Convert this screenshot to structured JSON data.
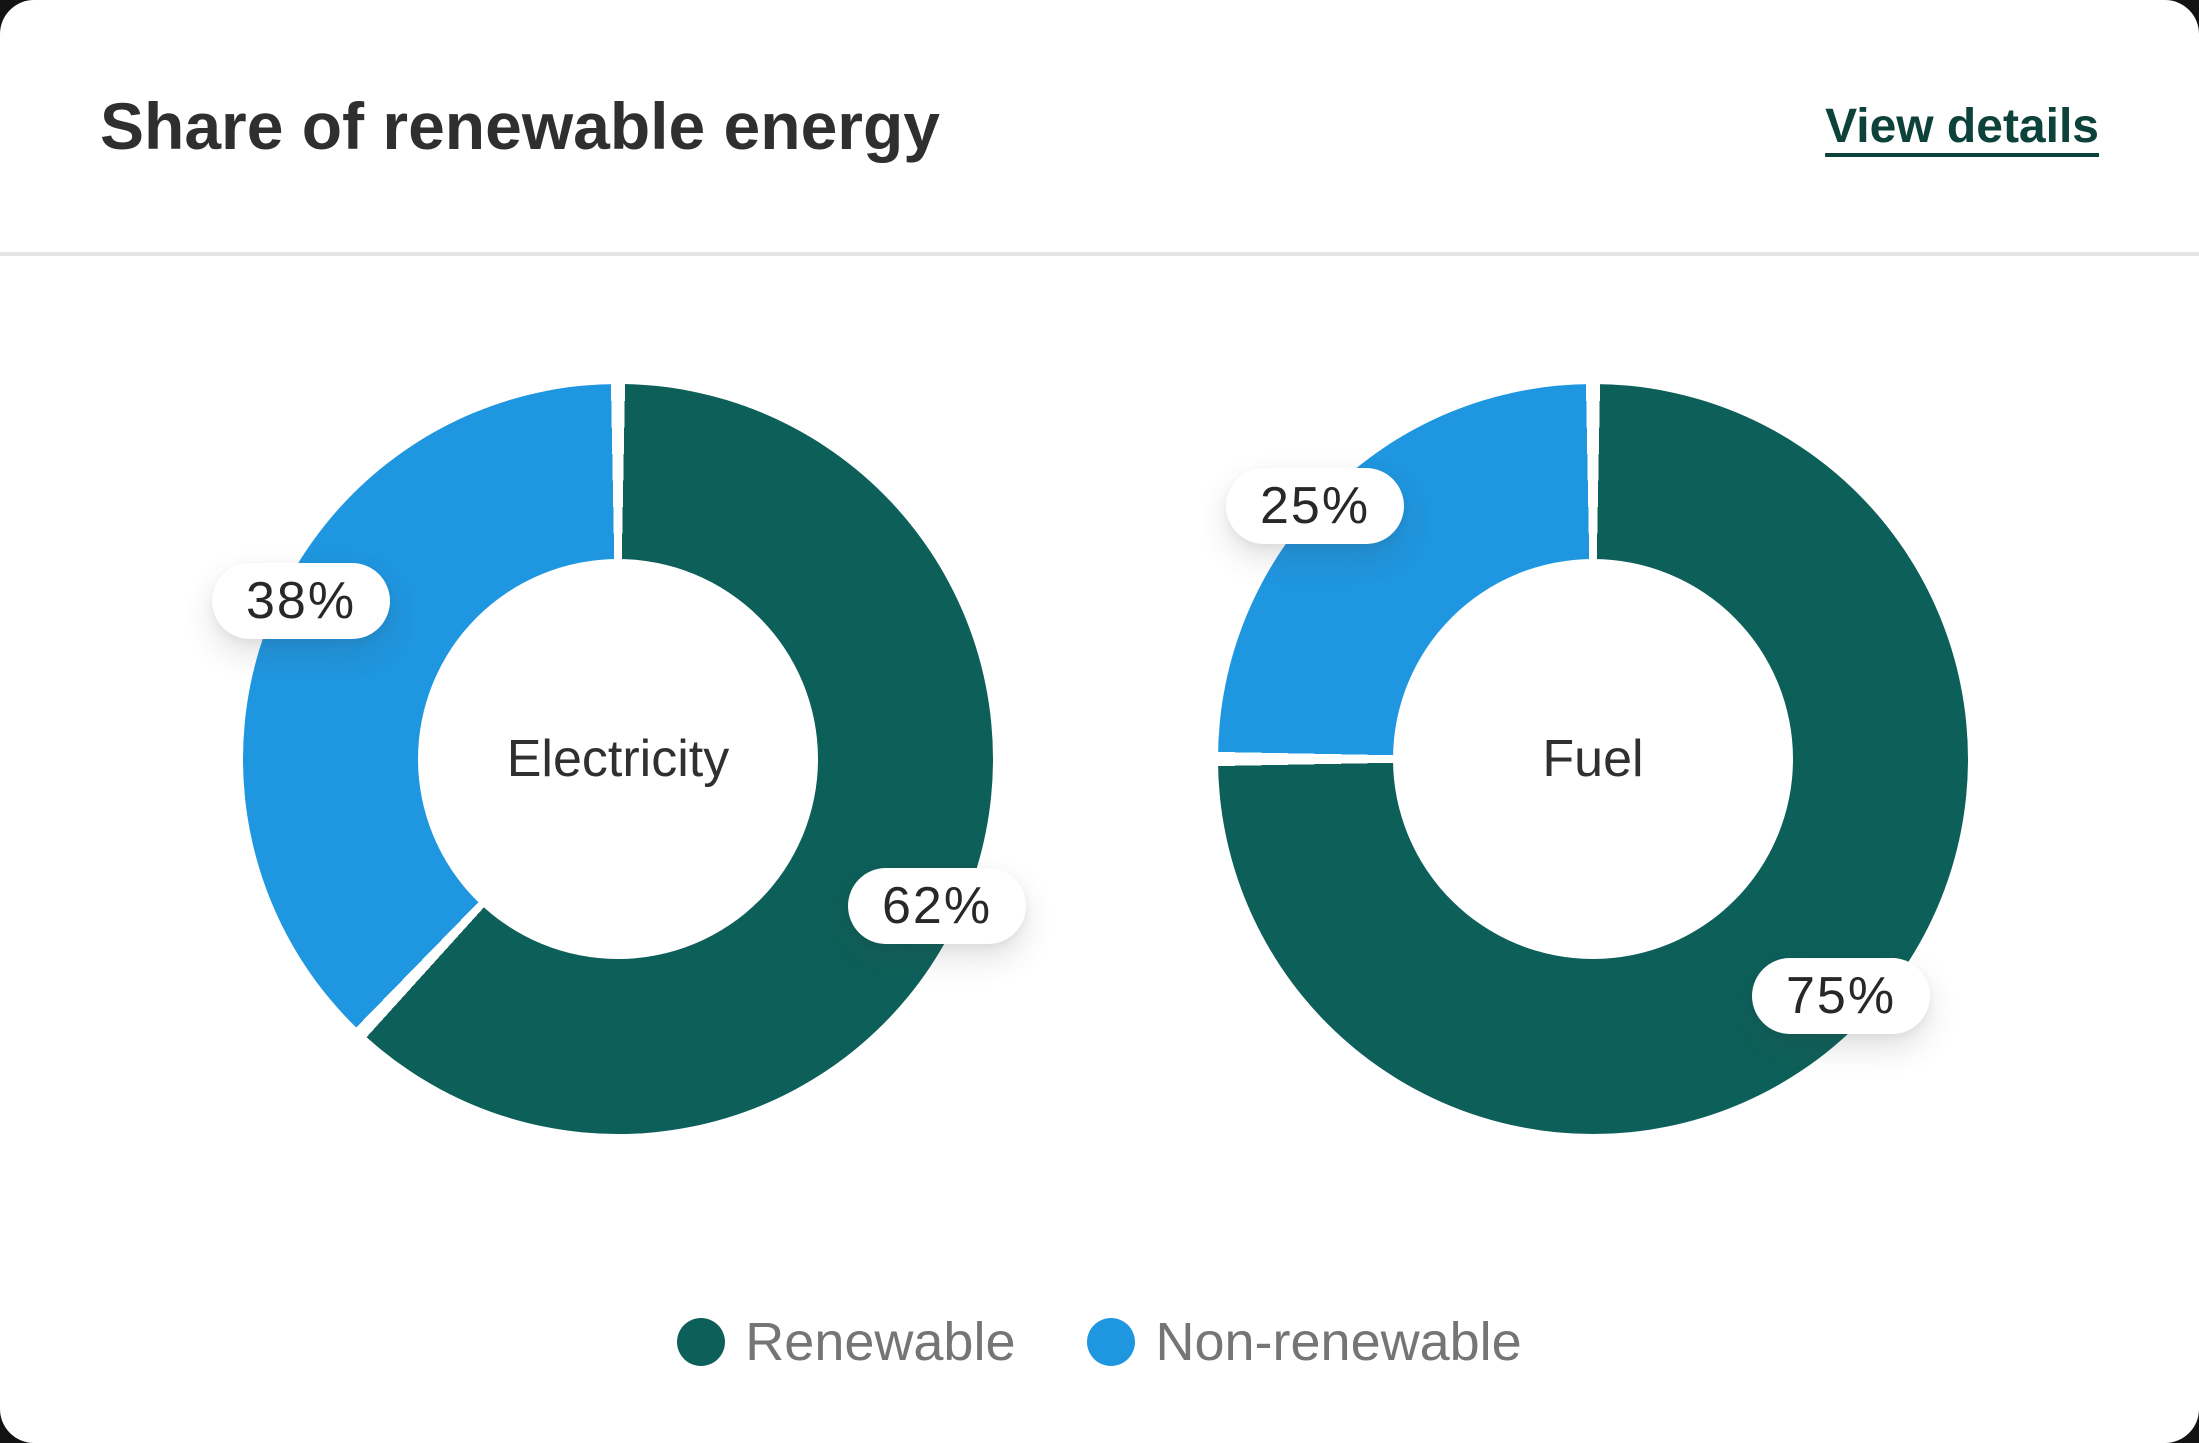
{
  "header": {
    "title": "Share of renewable energy",
    "link_label": "View details"
  },
  "colors": {
    "renewable": "#0d5f59",
    "non_renewable": "#1f96e0",
    "link": "#0d423b",
    "card_background": "#ffffff",
    "page_background": "#131313",
    "legend_text": "#757575"
  },
  "chart_data": [
    {
      "type": "pie",
      "title": "Electricity",
      "donut": true,
      "start_angle_deg": 0,
      "direction": "clockwise",
      "series": [
        {
          "name": "Renewable",
          "value": 62,
          "label": "62%",
          "color": "#0d5f59"
        },
        {
          "name": "Non-renewable",
          "value": 38,
          "label": "38%",
          "color": "#1f96e0"
        }
      ]
    },
    {
      "type": "pie",
      "title": "Fuel",
      "donut": true,
      "start_angle_deg": 0,
      "direction": "clockwise",
      "series": [
        {
          "name": "Renewable",
          "value": 75,
          "label": "75%",
          "color": "#0d5f59"
        },
        {
          "name": "Non-renewable",
          "value": 25,
          "label": "25%",
          "color": "#1f96e0"
        }
      ]
    }
  ],
  "legend": {
    "position": "bottom-center",
    "items": [
      {
        "label": "Renewable",
        "color": "#0d5f59"
      },
      {
        "label": "Non-renewable",
        "color": "#1f96e0"
      }
    ]
  }
}
